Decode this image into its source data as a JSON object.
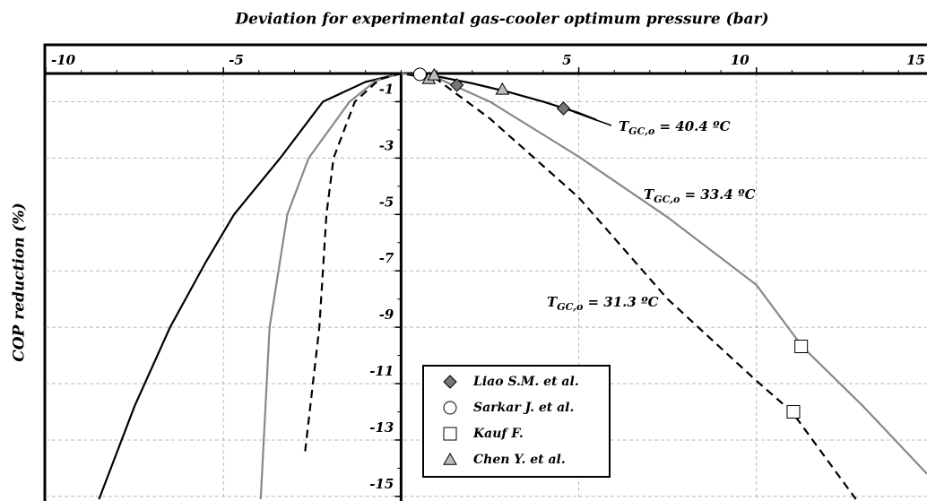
{
  "chart_data": {
    "type": "line",
    "title": "Deviation for experimental gas-cooler optimum pressure (bar)",
    "y_label": "COP reduction (%)",
    "xlim": [
      -10,
      14.8
    ],
    "ylim": [
      -15.1,
      0
    ],
    "xticks": [
      -10,
      -5,
      5,
      10,
      15
    ],
    "yticks": [
      -1,
      -3,
      -5,
      -7,
      -9,
      -11,
      -13,
      -15
    ],
    "grid": true,
    "curves": [
      {
        "color": "#000000",
        "dash": false,
        "x": [
          -8.5,
          -7.5,
          -6.5,
          -5.5,
          -4.7,
          -3.4,
          -2.2,
          -1,
          0,
          1,
          2,
          3,
          4,
          5,
          5.5
        ],
        "values": [
          -15.1,
          -11.8,
          -9,
          -6.7,
          -5,
          -3,
          -1,
          -0.3,
          0,
          -0.1,
          -0.35,
          -0.65,
          -1.0,
          -1.4,
          -1.65
        ]
      },
      {
        "color": "#888888",
        "dash": false,
        "x": [
          -3.95,
          -3.7,
          -3.2,
          -2.6,
          -1.45,
          -0.7,
          0,
          1,
          2.5,
          5,
          7.5,
          10,
          11.3,
          13,
          14.8
        ],
        "values": [
          -15.1,
          -9,
          -5,
          -3,
          -1,
          -0.25,
          0,
          -0.15,
          -1.0,
          -2.95,
          -5.1,
          -7.5,
          -9.7,
          -11.8,
          -14.2
        ]
      },
      {
        "color": "#000000",
        "dash": true,
        "x": [
          -2.7,
          -2.3,
          -2.1,
          -1.9,
          -1.3,
          -0.6,
          0,
          1,
          2.5,
          5,
          7.5,
          10,
          11,
          12.8
        ],
        "values": [
          -13.4,
          -9,
          -5,
          -3,
          -1,
          -0.2,
          0,
          -0.2,
          -1.6,
          -4.4,
          -8,
          -10.9,
          -12,
          -15.1
        ]
      }
    ],
    "annotations": [
      {
        "main": "T",
        "sub": "GC,o",
        "rest": " = 40.4 ºC"
      },
      {
        "main": "T",
        "sub": "GC,o",
        "rest": " = 33.4 ºC"
      },
      {
        "main": "T",
        "sub": "GC,o",
        "rest": " = 31.3 ºC"
      }
    ],
    "series": [
      {
        "name": "Liao S.M. et al.",
        "marker": "diamond",
        "color": "#777777",
        "x": [
          1.57,
          4.57
        ],
        "values": [
          -0.41,
          -1.24
        ]
      },
      {
        "name": "Sarkar J. et al.",
        "marker": "circle",
        "color": "#ffffff",
        "x": [
          0.53
        ],
        "values": [
          -0.03
        ]
      },
      {
        "name": "Kauf F.",
        "marker": "square",
        "color": "#ffffff",
        "x": [
          11.26,
          11.04
        ],
        "values": [
          -9.68,
          -12.0
        ]
      },
      {
        "name": "Chen Y. et al.",
        "marker": "triangle",
        "color": "#bbbbbb",
        "x": [
          0.78,
          0.93,
          2.85
        ],
        "values": [
          -0.19,
          -0.06,
          -0.57
        ]
      }
    ]
  }
}
